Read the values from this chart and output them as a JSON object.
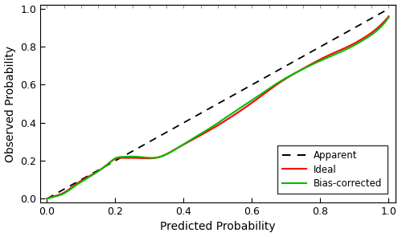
{
  "xlabel": "Predicted Probability",
  "ylabel": "Observed Probability",
  "xlim": [
    -0.02,
    1.02
  ],
  "ylim": [
    -0.02,
    1.02
  ],
  "xticks": [
    0.0,
    0.2,
    0.4,
    0.6,
    0.8,
    1.0
  ],
  "yticks": [
    0.0,
    0.2,
    0.4,
    0.6,
    0.8,
    1.0
  ],
  "apparent_color": "#000000",
  "ideal_color": "#FF0000",
  "bias_corrected_color": "#00BB00",
  "background_color": "#FFFFFF",
  "legend_labels": [
    "Apparent",
    "Ideal",
    "Bias-corrected"
  ],
  "ideal_x": [
    0.0,
    0.02,
    0.05,
    0.08,
    0.12,
    0.15,
    0.18,
    0.2,
    0.22,
    0.25,
    0.28,
    0.3,
    0.33,
    0.38,
    0.43,
    0.48,
    0.53,
    0.58,
    0.63,
    0.68,
    0.73,
    0.78,
    0.83,
    0.88,
    0.93,
    0.98,
    1.0
  ],
  "ideal_y": [
    0.0,
    0.012,
    0.032,
    0.07,
    0.115,
    0.145,
    0.185,
    0.21,
    0.215,
    0.215,
    0.213,
    0.212,
    0.22,
    0.265,
    0.315,
    0.365,
    0.42,
    0.48,
    0.545,
    0.61,
    0.665,
    0.715,
    0.76,
    0.8,
    0.85,
    0.92,
    0.96
  ],
  "bias_x": [
    0.0,
    0.02,
    0.05,
    0.08,
    0.12,
    0.15,
    0.18,
    0.2,
    0.22,
    0.25,
    0.28,
    0.3,
    0.33,
    0.38,
    0.43,
    0.48,
    0.53,
    0.58,
    0.63,
    0.68,
    0.73,
    0.78,
    0.83,
    0.88,
    0.93,
    0.98,
    1.0
  ],
  "bias_y": [
    0.0,
    0.01,
    0.028,
    0.065,
    0.11,
    0.145,
    0.185,
    0.213,
    0.22,
    0.222,
    0.218,
    0.215,
    0.22,
    0.265,
    0.32,
    0.375,
    0.435,
    0.495,
    0.555,
    0.615,
    0.665,
    0.71,
    0.75,
    0.79,
    0.84,
    0.91,
    0.955
  ],
  "top_tick_positions": [
    0.0,
    0.05,
    0.1,
    0.15,
    0.2,
    0.25,
    0.3,
    0.35,
    0.4,
    0.45,
    0.5,
    0.55,
    0.6,
    0.65,
    0.7,
    0.75,
    0.8,
    0.85,
    0.9,
    0.95,
    1.0
  ]
}
